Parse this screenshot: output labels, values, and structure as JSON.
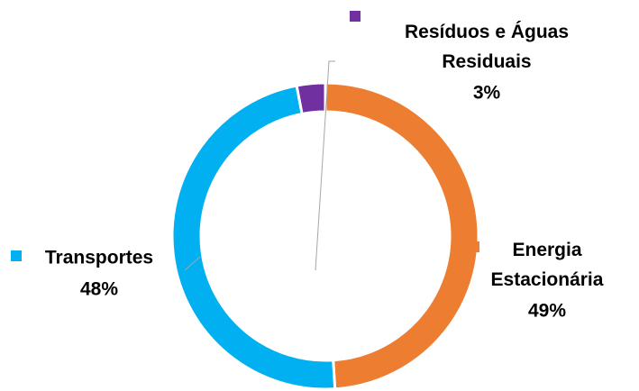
{
  "chart_data": {
    "type": "donut",
    "categories": [
      "Energia Estacionária",
      "Transportes",
      "Resíduos e Águas Residuais"
    ],
    "values": [
      49,
      48,
      3
    ],
    "value_labels": [
      "49%",
      "48%",
      "3%"
    ],
    "colors": [
      "#ed7d31",
      "#00b0f0",
      "#7030a0"
    ]
  }
}
